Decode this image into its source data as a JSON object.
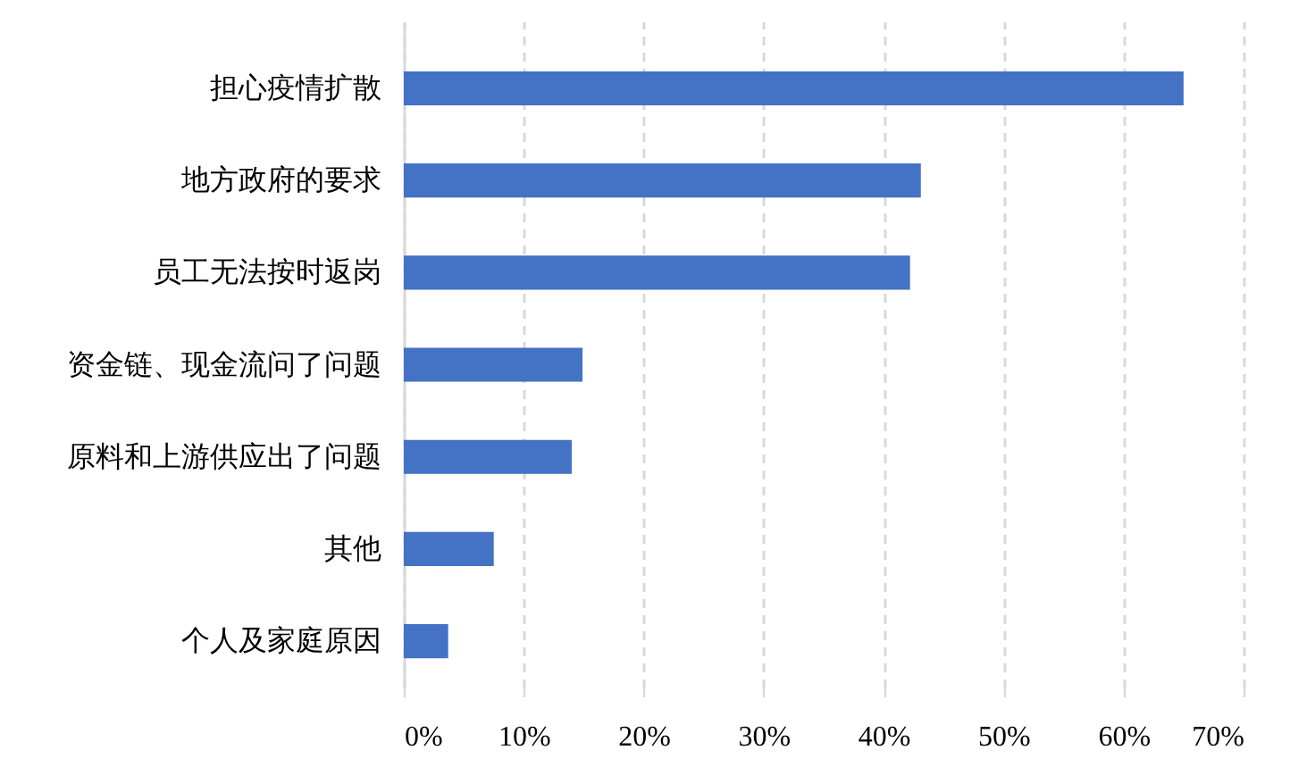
{
  "chart_data": {
    "type": "bar",
    "orientation": "horizontal",
    "categories": [
      "担心疫情扩散",
      "地方政府的要求",
      "员工无法按时返岗",
      "资金链、现金流问了问题",
      "原料和上游供应出了问题",
      "其他",
      "个人及家庭原因"
    ],
    "values": [
      65.0,
      43.1,
      42.2,
      14.9,
      14.0,
      7.5,
      3.7
    ],
    "color": "#4472c4",
    "xlim": [
      0,
      70
    ],
    "xticks": [
      {
        "value": 0,
        "label": "0%"
      },
      {
        "value": 10,
        "label": "10%"
      },
      {
        "value": 20,
        "label": "20%"
      },
      {
        "value": 30,
        "label": "30%"
      },
      {
        "value": 40,
        "label": "40%"
      },
      {
        "value": 50,
        "label": "50%"
      },
      {
        "value": 60,
        "label": "60%"
      },
      {
        "value": 70,
        "label": "70%"
      }
    ],
    "grid": "x"
  }
}
